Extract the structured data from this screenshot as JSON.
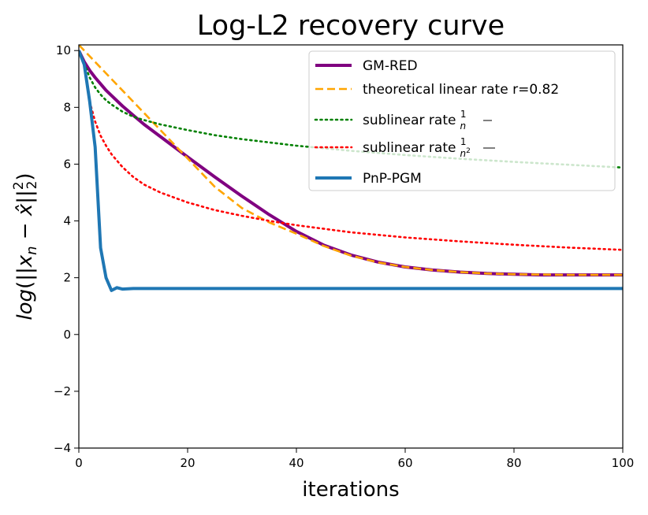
{
  "chart_data": {
    "type": "line",
    "title": "Log-L2 recovery curve",
    "xlabel": "iterations",
    "ylabel": "log(||x_n − x̂||₂²)",
    "xlim": [
      0,
      100
    ],
    "ylim": [
      -4,
      10.2
    ],
    "xticks": [
      0,
      20,
      40,
      60,
      80,
      100
    ],
    "yticks": [
      -4,
      -2,
      0,
      2,
      4,
      6,
      8,
      10
    ],
    "legend_position": "upper-right",
    "series": [
      {
        "name": "GM-RED",
        "label": "GM-RED",
        "color": "#800080",
        "style": "solid",
        "x": [
          0,
          1,
          2,
          3,
          5,
          8,
          10,
          12,
          15,
          20,
          25,
          30,
          35,
          40,
          45,
          50,
          55,
          60,
          65,
          70,
          75,
          80,
          85,
          90,
          95,
          100
        ],
        "y": [
          10.0,
          9.6,
          9.3,
          9.05,
          8.6,
          8.05,
          7.72,
          7.4,
          6.97,
          6.25,
          5.55,
          4.87,
          4.22,
          3.63,
          3.15,
          2.8,
          2.55,
          2.38,
          2.27,
          2.2,
          2.15,
          2.12,
          2.1,
          2.1,
          2.1,
          2.1
        ]
      },
      {
        "name": "theoretical linear rate",
        "label": "theoretical linear rate r=0.82",
        "color": "#FFA500",
        "style": "dashed",
        "x": [
          0,
          5,
          10,
          15,
          20,
          25,
          30,
          35,
          40,
          45,
          50,
          55,
          60,
          65,
          70,
          75,
          80,
          85,
          90,
          95,
          100
        ],
        "y": [
          10.2,
          9.2,
          8.2,
          7.2,
          6.2,
          5.2,
          4.45,
          3.95,
          3.55,
          3.12,
          2.78,
          2.54,
          2.38,
          2.27,
          2.2,
          2.15,
          2.12,
          2.11,
          2.1,
          2.1,
          2.1
        ]
      },
      {
        "name": "sublinear rate 1/n",
        "label_prefix": "sublinear rate ",
        "label_num": "1",
        "label_den": "n",
        "color": "#008000",
        "style": "dotted",
        "x": [
          1,
          2,
          3,
          4,
          5,
          6,
          8,
          10,
          12,
          15,
          20,
          25,
          30,
          40,
          50,
          60,
          70,
          80,
          90,
          100
        ],
        "y": [
          9.55,
          9.05,
          8.7,
          8.45,
          8.25,
          8.1,
          7.85,
          7.67,
          7.55,
          7.4,
          7.2,
          7.02,
          6.88,
          6.65,
          6.47,
          6.32,
          6.19,
          6.08,
          5.98,
          5.88
        ]
      },
      {
        "name": "sublinear rate 1/n^2",
        "label_prefix": "sublinear rate ",
        "label_num": "1",
        "label_den": "n",
        "label_exp": "2",
        "color": "#FF0000",
        "style": "dotted",
        "x": [
          2,
          3,
          4,
          5,
          6,
          8,
          10,
          12,
          15,
          20,
          25,
          30,
          35,
          40,
          50,
          60,
          70,
          80,
          90,
          100
        ],
        "y": [
          8.2,
          7.5,
          7.0,
          6.65,
          6.35,
          5.9,
          5.55,
          5.28,
          5.0,
          4.65,
          4.38,
          4.18,
          4.0,
          3.85,
          3.6,
          3.42,
          3.28,
          3.16,
          3.06,
          2.98
        ]
      },
      {
        "name": "PnP-PGM",
        "label": "PnP-PGM",
        "color": "#1F77B4",
        "style": "solid",
        "x": [
          0,
          1,
          2,
          3,
          4,
          5,
          6,
          7,
          8,
          10,
          20,
          40,
          60,
          80,
          100
        ],
        "y": [
          10.0,
          9.5,
          8.2,
          6.6,
          3.05,
          2.0,
          1.55,
          1.65,
          1.6,
          1.62,
          1.62,
          1.62,
          1.62,
          1.62,
          1.62
        ]
      }
    ]
  }
}
